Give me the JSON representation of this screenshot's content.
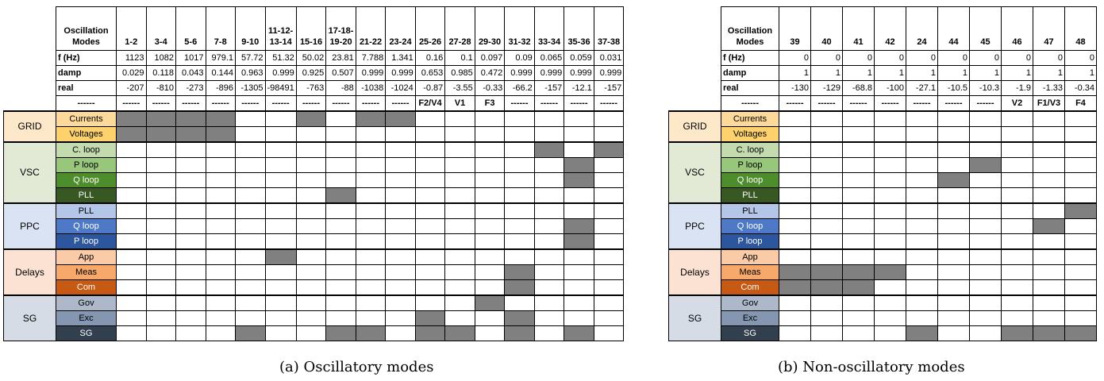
{
  "colors": {
    "active_cell": "#808080",
    "grid_group": "#fde9c9",
    "vsc_group": "#e2ead6",
    "ppc_group": "#dae3f3",
    "delays_group": "#fbe2d3",
    "sg_group": "#d6dce5",
    "currents": "#fdd99a",
    "voltages": "#fdd26d",
    "c_loop": "#c3dbae",
    "p_loop_vsc": "#98c77c",
    "q_loop_vsc": "#4e8d2c",
    "pll_vsc": "#375723",
    "pll_ppc": "#b4c6e7",
    "q_loop_ppc": "#4d79c6",
    "p_loop_ppc": "#2c579e",
    "app": "#fbcba8",
    "meas": "#f6a96a",
    "com": "#c65913",
    "gov": "#adb9ca",
    "exc": "#8496b0",
    "sg": "#323f4f"
  },
  "panels": [
    {
      "id": "a",
      "caption": "(a) Oscillatory modes",
      "corner_label": "Oscillation Modes",
      "modes": [
        "1-2",
        "3-4",
        "5-6",
        "7-8",
        "9-10",
        "11-12-13-14",
        "15-16",
        "17-18-19-20",
        "21-22",
        "23-24",
        "25-26",
        "27-28",
        "29-30",
        "31-32",
        "33-34",
        "35-36",
        "37-38"
      ],
      "rows": [
        {
          "label": "f (Hz)",
          "values": [
            "1123",
            "1082",
            "1017",
            "979.1",
            "57.72",
            "51.32",
            "50.02",
            "23.81",
            "7.788",
            "1.341",
            "0.16",
            "0.1",
            "0.097",
            "0.09",
            "0.065",
            "0.059",
            "0.031"
          ]
        },
        {
          "label": "damp",
          "values": [
            "0.029",
            "0.118",
            "0.043",
            "0.144",
            "0.963",
            "0.999",
            "0.925",
            "0.507",
            "0.999",
            "0.999",
            "0.653",
            "0.985",
            "0.472",
            "0.999",
            "0.999",
            "0.999",
            "0.999"
          ]
        },
        {
          "label": "real",
          "values": [
            "-207",
            "-810",
            "-273",
            "-896",
            "-1305",
            "-98491",
            "-763",
            "-88",
            "-1038",
            "-1024",
            "-0.87",
            "-3.55",
            "-0.33",
            "-66.2",
            "-157",
            "-12.1",
            "-157"
          ]
        }
      ],
      "tag_row": {
        "label": "------",
        "values": [
          "------",
          "------",
          "------",
          "------",
          "------",
          "------",
          "------",
          "------",
          "------",
          "------",
          "F2/V4",
          "V1",
          "F3",
          "------",
          "------",
          "------",
          "------"
        ]
      },
      "groups": [
        {
          "name": "GRID",
          "color_key": "grid_group",
          "subs": [
            {
              "label": "Currents",
              "color_key": "currents",
              "cells": [
                1,
                1,
                1,
                1,
                0,
                0,
                1,
                0,
                1,
                1,
                0,
                0,
                0,
                0,
                0,
                0,
                0
              ]
            },
            {
              "label": "Voltages",
              "color_key": "voltages",
              "cells": [
                1,
                1,
                1,
                1,
                0,
                0,
                0,
                0,
                0,
                0,
                0,
                0,
                0,
                0,
                0,
                0,
                0
              ]
            }
          ]
        },
        {
          "name": "VSC",
          "color_key": "vsc_group",
          "subs": [
            {
              "label": "C. loop",
              "color_key": "c_loop",
              "cells": [
                0,
                0,
                0,
                0,
                0,
                0,
                0,
                0,
                0,
                0,
                0,
                0,
                0,
                0,
                1,
                0,
                1
              ]
            },
            {
              "label": "P loop",
              "color_key": "p_loop_vsc",
              "cells": [
                0,
                0,
                0,
                0,
                0,
                0,
                0,
                0,
                0,
                0,
                0,
                0,
                0,
                0,
                0,
                1,
                0
              ]
            },
            {
              "label": "Q loop",
              "color_key": "q_loop_vsc",
              "cells": [
                0,
                0,
                0,
                0,
                0,
                0,
                0,
                0,
                0,
                0,
                0,
                0,
                0,
                0,
                0,
                1,
                0
              ]
            },
            {
              "label": "PLL",
              "color_key": "pll_vsc",
              "cells": [
                0,
                0,
                0,
                0,
                0,
                0,
                0,
                1,
                0,
                0,
                0,
                0,
                0,
                0,
                0,
                0,
                0
              ]
            }
          ]
        },
        {
          "name": "PPC",
          "color_key": "ppc_group",
          "subs": [
            {
              "label": "PLL",
              "color_key": "pll_ppc",
              "cells": [
                0,
                0,
                0,
                0,
                0,
                0,
                0,
                0,
                0,
                0,
                0,
                0,
                0,
                0,
                0,
                0,
                0
              ]
            },
            {
              "label": "Q loop",
              "color_key": "q_loop_ppc",
              "cells": [
                0,
                0,
                0,
                0,
                0,
                0,
                0,
                0,
                0,
                0,
                0,
                0,
                0,
                0,
                0,
                1,
                0
              ]
            },
            {
              "label": "P loop",
              "color_key": "p_loop_ppc",
              "cells": [
                0,
                0,
                0,
                0,
                0,
                0,
                0,
                0,
                0,
                0,
                0,
                0,
                0,
                0,
                0,
                1,
                0
              ]
            }
          ]
        },
        {
          "name": "Delays",
          "color_key": "delays_group",
          "subs": [
            {
              "label": "App",
              "color_key": "app",
              "cells": [
                0,
                0,
                0,
                0,
                0,
                1,
                0,
                0,
                0,
                0,
                0,
                0,
                0,
                0,
                0,
                0,
                0
              ]
            },
            {
              "label": "Meas",
              "color_key": "meas",
              "cells": [
                0,
                0,
                0,
                0,
                0,
                0,
                0,
                0,
                0,
                0,
                0,
                0,
                0,
                1,
                0,
                0,
                0
              ]
            },
            {
              "label": "Com",
              "color_key": "com",
              "cells": [
                0,
                0,
                0,
                0,
                0,
                0,
                0,
                0,
                0,
                0,
                0,
                0,
                0,
                1,
                0,
                0,
                0
              ]
            }
          ]
        },
        {
          "name": "SG",
          "color_key": "sg_group",
          "subs": [
            {
              "label": "Gov",
              "color_key": "gov",
              "cells": [
                0,
                0,
                0,
                0,
                0,
                0,
                0,
                0,
                0,
                0,
                0,
                0,
                1,
                0,
                0,
                0,
                0
              ]
            },
            {
              "label": "Exc",
              "color_key": "exc",
              "cells": [
                0,
                0,
                0,
                0,
                0,
                0,
                0,
                0,
                0,
                0,
                1,
                0,
                0,
                1,
                0,
                0,
                0
              ]
            },
            {
              "label": "SG",
              "color_key": "sg",
              "cells": [
                0,
                0,
                0,
                0,
                1,
                0,
                0,
                1,
                1,
                0,
                1,
                1,
                0,
                1,
                0,
                1,
                0
              ]
            }
          ]
        }
      ]
    },
    {
      "id": "b",
      "caption": "(b) Non-oscillatory modes",
      "corner_label": "Oscillation Modes",
      "modes": [
        "39",
        "40",
        "41",
        "42",
        "24",
        "44",
        "45",
        "46",
        "47",
        "48"
      ],
      "rows": [
        {
          "label": "f (Hz)",
          "values": [
            "0",
            "0",
            "0",
            "0",
            "0",
            "0",
            "0",
            "0",
            "0",
            "0"
          ]
        },
        {
          "label": "damp",
          "values": [
            "1",
            "1",
            "1",
            "1",
            "1",
            "1",
            "1",
            "1",
            "1",
            "1"
          ]
        },
        {
          "label": "real",
          "values": [
            "-130",
            "-129",
            "-68.8",
            "-100",
            "-27.1",
            "-10.5",
            "-10.3",
            "-1.9",
            "-1.33",
            "-0.34"
          ]
        }
      ],
      "tag_row": {
        "label": "------",
        "values": [
          "------",
          "------",
          "------",
          "------",
          "------",
          "------",
          "------",
          "V2",
          "F1/V3",
          "F4"
        ]
      },
      "groups": [
        {
          "name": "GRID",
          "color_key": "grid_group",
          "subs": [
            {
              "label": "Currents",
              "color_key": "currents",
              "cells": [
                0,
                0,
                0,
                0,
                0,
                0,
                0,
                0,
                0,
                0
              ]
            },
            {
              "label": "Voltages",
              "color_key": "voltages",
              "cells": [
                0,
                0,
                0,
                0,
                0,
                0,
                0,
                0,
                0,
                0
              ]
            }
          ]
        },
        {
          "name": "VSC",
          "color_key": "vsc_group",
          "subs": [
            {
              "label": "C. loop",
              "color_key": "c_loop",
              "cells": [
                0,
                0,
                0,
                0,
                0,
                0,
                0,
                0,
                0,
                0
              ]
            },
            {
              "label": "P loop",
              "color_key": "p_loop_vsc",
              "cells": [
                0,
                0,
                0,
                0,
                0,
                0,
                1,
                0,
                0,
                0
              ]
            },
            {
              "label": "Q loop",
              "color_key": "q_loop_vsc",
              "cells": [
                0,
                0,
                0,
                0,
                0,
                1,
                0,
                0,
                0,
                0
              ]
            },
            {
              "label": "PLL",
              "color_key": "pll_vsc",
              "cells": [
                0,
                0,
                0,
                0,
                0,
                0,
                0,
                0,
                0,
                0
              ]
            }
          ]
        },
        {
          "name": "PPC",
          "color_key": "ppc_group",
          "subs": [
            {
              "label": "PLL",
              "color_key": "pll_ppc",
              "cells": [
                0,
                0,
                0,
                0,
                0,
                0,
                0,
                0,
                0,
                1
              ]
            },
            {
              "label": "Q loop",
              "color_key": "q_loop_ppc",
              "cells": [
                0,
                0,
                0,
                0,
                0,
                0,
                0,
                0,
                1,
                0
              ]
            },
            {
              "label": "P loop",
              "color_key": "p_loop_ppc",
              "cells": [
                0,
                0,
                0,
                0,
                0,
                0,
                0,
                0,
                0,
                0
              ]
            }
          ]
        },
        {
          "name": "Delays",
          "color_key": "delays_group",
          "subs": [
            {
              "label": "App",
              "color_key": "app",
              "cells": [
                0,
                0,
                0,
                0,
                0,
                0,
                0,
                0,
                0,
                0
              ]
            },
            {
              "label": "Meas",
              "color_key": "meas",
              "cells": [
                1,
                1,
                1,
                1,
                0,
                0,
                0,
                0,
                0,
                0
              ]
            },
            {
              "label": "Com",
              "color_key": "com",
              "cells": [
                1,
                1,
                1,
                0,
                0,
                0,
                0,
                0,
                0,
                0
              ]
            }
          ]
        },
        {
          "name": "SG",
          "color_key": "sg_group",
          "subs": [
            {
              "label": "Gov",
              "color_key": "gov",
              "cells": [
                0,
                0,
                0,
                0,
                0,
                0,
                0,
                0,
                0,
                0
              ]
            },
            {
              "label": "Exc",
              "color_key": "exc",
              "cells": [
                0,
                0,
                0,
                0,
                0,
                0,
                0,
                0,
                0,
                0
              ]
            },
            {
              "label": "SG",
              "color_key": "sg",
              "cells": [
                0,
                0,
                0,
                0,
                1,
                0,
                0,
                1,
                1,
                1
              ]
            }
          ]
        }
      ]
    }
  ]
}
